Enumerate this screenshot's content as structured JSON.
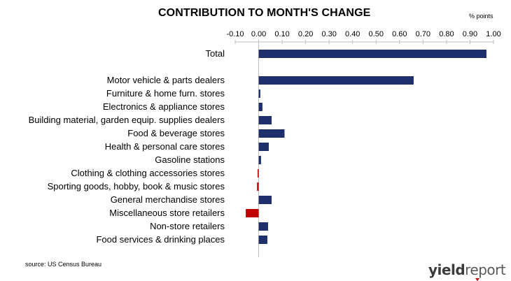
{
  "title": "CONTRIBUTION TO MONTH'S CHANGE",
  "unit_label": "% points",
  "source": "source: US Census Bureau",
  "logo": {
    "bold": "yield",
    "light": "report"
  },
  "colors": {
    "positive": "#1f2f6b",
    "negative": "#c00000",
    "axis": "#bfbfbf"
  },
  "chart_data": {
    "type": "bar",
    "orientation": "horizontal",
    "xlim": [
      -0.1,
      1.0
    ],
    "ticks": [
      "-0.10",
      "0.00",
      "0.10",
      "0.20",
      "0.30",
      "0.40",
      "0.50",
      "0.60",
      "0.70",
      "0.80",
      "0.90",
      "1.00"
    ],
    "tick_values": [
      -0.1,
      0.0,
      0.1,
      0.2,
      0.3,
      0.4,
      0.5,
      0.6,
      0.7,
      0.8,
      0.9,
      1.0
    ],
    "categories": [
      "Total",
      "",
      "Motor vehicle & parts dealers",
      "Furniture & home furn. stores",
      "Electronics & appliance stores",
      "Building material, garden equip. supplies dealers",
      "Food & beverage stores",
      "Health & personal care stores",
      "Gasoline stations",
      "Clothing & clothing accessories stores",
      "Sporting goods, hobby, book & music stores",
      "General merchandise stores",
      "Miscellaneous store retailers",
      "Non-store retailers",
      "Food services & drinking places"
    ],
    "values": [
      0.97,
      null,
      0.66,
      0.007,
      0.016,
      0.055,
      0.11,
      0.043,
      0.01,
      -0.004,
      -0.007,
      0.055,
      -0.055,
      0.04,
      0.037
    ],
    "grid": false,
    "legend": "none"
  }
}
